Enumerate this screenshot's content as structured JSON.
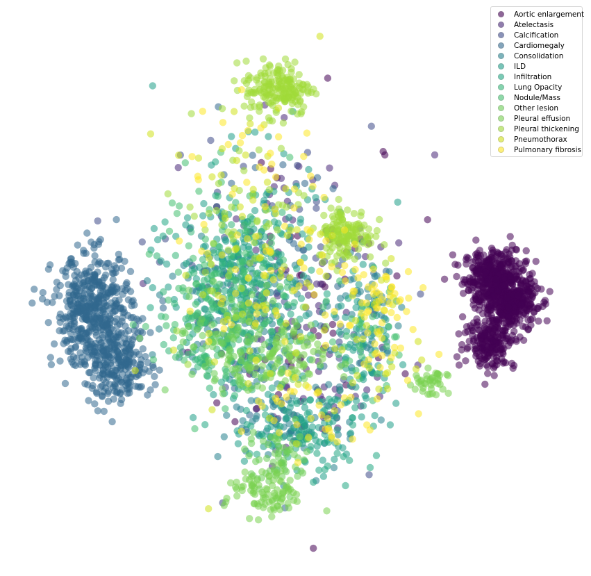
{
  "chart_data": {
    "type": "scatter",
    "title": "",
    "xlabel": "",
    "ylabel": "",
    "axes_visible": false,
    "grid": false,
    "legend_position": "top-right",
    "marker_alpha": 0.55,
    "series": [
      {
        "name": "Aortic enlargement",
        "color": "#440154",
        "clusters": [
          {
            "cx": 0.71,
            "cy": 0.04,
            "sx": 0.055,
            "sy": 0.05,
            "n": 380
          },
          {
            "cx": 0.76,
            "cy": -0.06,
            "sx": 0.05,
            "sy": 0.05,
            "n": 360
          },
          {
            "cx": 0.69,
            "cy": -0.2,
            "sx": 0.045,
            "sy": 0.045,
            "n": 180
          },
          {
            "cx": 0.05,
            "cy": 0.0,
            "sx": 0.2,
            "sy": 0.28,
            "n": 60
          }
        ]
      },
      {
        "name": "Atelectasis",
        "color": "#482878",
        "clusters": [
          {
            "cx": 0.0,
            "cy": 0.0,
            "sx": 0.2,
            "sy": 0.28,
            "n": 70
          },
          {
            "cx": 0.1,
            "cy": -0.45,
            "sx": 0.1,
            "sy": 0.07,
            "n": 30
          }
        ]
      },
      {
        "name": "Calcification",
        "color": "#3e4a89",
        "clusters": [
          {
            "cx": -0.1,
            "cy": 0.0,
            "sx": 0.2,
            "sy": 0.28,
            "n": 60
          }
        ]
      },
      {
        "name": "Cardiomegaly",
        "color": "#31688e",
        "clusters": [
          {
            "cx": -0.72,
            "cy": -0.08,
            "sx": 0.07,
            "sy": 0.1,
            "n": 460
          },
          {
            "cx": -0.63,
            "cy": -0.28,
            "sx": 0.06,
            "sy": 0.07,
            "n": 240
          },
          {
            "cx": -0.05,
            "cy": 0.0,
            "sx": 0.2,
            "sy": 0.28,
            "n": 50
          }
        ]
      },
      {
        "name": "Consolidation",
        "color": "#26828e",
        "clusters": [
          {
            "cx": -0.2,
            "cy": -0.05,
            "sx": 0.12,
            "sy": 0.15,
            "n": 140
          },
          {
            "cx": 0.25,
            "cy": -0.1,
            "sx": 0.06,
            "sy": 0.12,
            "n": 60
          },
          {
            "cx": 0.0,
            "cy": -0.5,
            "sx": 0.12,
            "sy": 0.08,
            "n": 70
          }
        ]
      },
      {
        "name": "ILD",
        "color": "#1f9e89",
        "clusters": [
          {
            "cx": -0.2,
            "cy": 0.1,
            "sx": 0.13,
            "sy": 0.2,
            "n": 150
          },
          {
            "cx": 0.0,
            "cy": -0.5,
            "sx": 0.12,
            "sy": 0.08,
            "n": 80
          },
          {
            "cx": 0.25,
            "cy": -0.2,
            "sx": 0.06,
            "sy": 0.12,
            "n": 60
          }
        ]
      },
      {
        "name": "Infiltration",
        "color": "#22a884",
        "clusters": [
          {
            "cx": -0.15,
            "cy": 0.0,
            "sx": 0.13,
            "sy": 0.18,
            "n": 120
          },
          {
            "cx": 0.05,
            "cy": -0.55,
            "sx": 0.12,
            "sy": 0.08,
            "n": 60
          }
        ]
      },
      {
        "name": "Lung Opacity",
        "color": "#35b779",
        "clusters": [
          {
            "cx": -0.25,
            "cy": -0.05,
            "sx": 0.1,
            "sy": 0.15,
            "n": 130
          },
          {
            "cx": -0.32,
            "cy": -0.26,
            "sx": 0.015,
            "sy": 0.015,
            "n": 12
          }
        ]
      },
      {
        "name": "Nodule/Mass",
        "color": "#44bf70",
        "clusters": [
          {
            "cx": -0.25,
            "cy": 0.0,
            "sx": 0.12,
            "sy": 0.2,
            "n": 120
          },
          {
            "cx": 0.25,
            "cy": -0.15,
            "sx": 0.06,
            "sy": 0.12,
            "n": 40
          }
        ]
      },
      {
        "name": "Other lesion",
        "color": "#6ece58",
        "clusters": [
          {
            "cx": -0.2,
            "cy": -0.2,
            "sx": 0.12,
            "sy": 0.1,
            "n": 110
          },
          {
            "cx": -0.05,
            "cy": -0.62,
            "sx": 0.06,
            "sy": 0.06,
            "n": 60
          }
        ]
      },
      {
        "name": "Pleural effusion",
        "color": "#7ad151",
        "clusters": [
          {
            "cx": -0.1,
            "cy": -0.75,
            "sx": 0.07,
            "sy": 0.045,
            "n": 90
          },
          {
            "cx": 0.48,
            "cy": -0.35,
            "sx": 0.03,
            "sy": 0.03,
            "n": 40
          },
          {
            "cx": -0.05,
            "cy": -0.26,
            "sx": 0.08,
            "sy": 0.06,
            "n": 90
          }
        ]
      },
      {
        "name": "Pleural thickening",
        "color": "#a0da39",
        "clusters": [
          {
            "cx": -0.06,
            "cy": 0.73,
            "sx": 0.06,
            "sy": 0.05,
            "n": 180
          },
          {
            "cx": 0.18,
            "cy": 0.2,
            "sx": 0.05,
            "sy": 0.05,
            "n": 140
          },
          {
            "cx": -0.2,
            "cy": 0.2,
            "sx": 0.12,
            "sy": 0.2,
            "n": 60
          }
        ]
      },
      {
        "name": "Pneumothorax",
        "color": "#d0e11c",
        "clusters": [
          {
            "cx": -0.15,
            "cy": 0.1,
            "sx": 0.15,
            "sy": 0.3,
            "n": 70
          },
          {
            "cx": 0.3,
            "cy": -0.2,
            "sx": 0.08,
            "sy": 0.15,
            "n": 30
          }
        ]
      },
      {
        "name": "Pulmonary fibrosis",
        "color": "#fde725",
        "clusters": [
          {
            "cx": -0.1,
            "cy": 0.15,
            "sx": 0.15,
            "sy": 0.25,
            "n": 90
          },
          {
            "cx": 0.28,
            "cy": -0.1,
            "sx": 0.07,
            "sy": 0.14,
            "n": 60
          },
          {
            "cx": 0.05,
            "cy": -0.45,
            "sx": 0.12,
            "sy": 0.08,
            "n": 30
          }
        ]
      }
    ],
    "xlim": [
      -1.0,
      1.0
    ],
    "ylim": [
      -1.0,
      1.0
    ]
  }
}
